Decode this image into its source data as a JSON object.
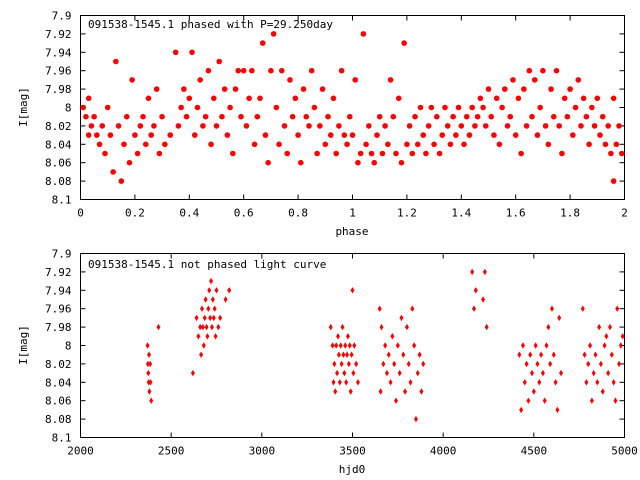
{
  "chart_data": [
    {
      "type": "scatter",
      "title": "091538-1545.1 phased with P=29.250day",
      "xlabel": "phase",
      "ylabel": "I[mag]",
      "xlim": [
        0,
        2
      ],
      "ylim": [
        8.1,
        7.9
      ],
      "y_inverted": true,
      "grid": false,
      "marker": "filled-circle",
      "color": "#ff0000",
      "xticks": [
        "0",
        "0.2",
        "0.4",
        "0.6",
        "0.8",
        "1",
        "1.2",
        "1.4",
        "1.6",
        "1.8",
        "2"
      ],
      "yticks": [
        "7.9",
        "7.92",
        "7.94",
        "7.96",
        "7.98",
        "8",
        "8.02",
        "8.04",
        "8.06",
        "8.08",
        "8.1"
      ],
      "points": [
        [
          0.01,
          8.0
        ],
        [
          0.02,
          8.01
        ],
        [
          0.03,
          7.99
        ],
        [
          0.03,
          8.03
        ],
        [
          0.04,
          8.02
        ],
        [
          0.05,
          8.01
        ],
        [
          0.06,
          8.03
        ],
        [
          0.07,
          8.04
        ],
        [
          0.08,
          8.02
        ],
        [
          0.09,
          8.05
        ],
        [
          0.1,
          8.0
        ],
        [
          0.11,
          8.03
        ],
        [
          0.12,
          8.07
        ],
        [
          0.13,
          7.95
        ],
        [
          0.14,
          8.02
        ],
        [
          0.15,
          8.08
        ],
        [
          0.16,
          8.04
        ],
        [
          0.17,
          8.01
        ],
        [
          0.18,
          8.06
        ],
        [
          0.19,
          7.97
        ],
        [
          0.2,
          8.03
        ],
        [
          0.21,
          8.05
        ],
        [
          0.22,
          8.02
        ],
        [
          0.23,
          8.01
        ],
        [
          0.24,
          8.04
        ],
        [
          0.25,
          7.99
        ],
        [
          0.26,
          8.03
        ],
        [
          0.27,
          8.02
        ],
        [
          0.28,
          7.98
        ],
        [
          0.29,
          8.05
        ],
        [
          0.3,
          8.01
        ],
        [
          0.31,
          8.04
        ],
        [
          0.33,
          8.03
        ],
        [
          0.35,
          7.94
        ],
        [
          0.36,
          8.02
        ],
        [
          0.37,
          8.0
        ],
        [
          0.38,
          7.98
        ],
        [
          0.39,
          8.01
        ],
        [
          0.4,
          7.99
        ],
        [
          0.41,
          7.94
        ],
        [
          0.42,
          8.03
        ],
        [
          0.43,
          8.0
        ],
        [
          0.44,
          7.97
        ],
        [
          0.45,
          8.02
        ],
        [
          0.46,
          8.01
        ],
        [
          0.47,
          7.96
        ],
        [
          0.48,
          8.04
        ],
        [
          0.49,
          7.99
        ],
        [
          0.5,
          8.02
        ],
        [
          0.51,
          7.95
        ],
        [
          0.52,
          8.01
        ],
        [
          0.53,
          7.98
        ],
        [
          0.54,
          8.03
        ],
        [
          0.55,
          8.0
        ],
        [
          0.56,
          8.05
        ],
        [
          0.57,
          7.98
        ],
        [
          0.58,
          7.96
        ],
        [
          0.59,
          8.01
        ],
        [
          0.6,
          7.96
        ],
        [
          0.61,
          8.02
        ],
        [
          0.62,
          7.99
        ],
        [
          0.63,
          7.96
        ],
        [
          0.64,
          8.04
        ],
        [
          0.65,
          8.01
        ],
        [
          0.66,
          7.99
        ],
        [
          0.67,
          7.93
        ],
        [
          0.68,
          8.03
        ],
        [
          0.69,
          8.06
        ],
        [
          0.7,
          7.96
        ],
        [
          0.71,
          7.92
        ],
        [
          0.72,
          8.0
        ],
        [
          0.73,
          8.04
        ],
        [
          0.74,
          7.96
        ],
        [
          0.75,
          8.02
        ],
        [
          0.76,
          8.05
        ],
        [
          0.77,
          7.97
        ],
        [
          0.78,
          8.01
        ],
        [
          0.79,
          7.99
        ],
        [
          0.8,
          8.03
        ],
        [
          0.81,
          8.06
        ],
        [
          0.82,
          7.98
        ],
        [
          0.83,
          8.01
        ],
        [
          0.84,
          8.02
        ],
        [
          0.85,
          7.96
        ],
        [
          0.86,
          8.0
        ],
        [
          0.87,
          8.05
        ],
        [
          0.88,
          8.02
        ],
        [
          0.89,
          7.98
        ],
        [
          0.9,
          8.04
        ],
        [
          0.91,
          8.01
        ],
        [
          0.92,
          8.03
        ],
        [
          0.93,
          7.99
        ],
        [
          0.94,
          8.05
        ],
        [
          0.95,
          8.02
        ],
        [
          0.96,
          7.96
        ],
        [
          0.97,
          8.03
        ],
        [
          0.98,
          8.04
        ],
        [
          0.99,
          8.01
        ],
        [
          1.0,
          8.03
        ],
        [
          1.01,
          7.97
        ],
        [
          1.02,
          8.06
        ],
        [
          1.03,
          8.05
        ],
        [
          1.04,
          7.92
        ],
        [
          1.05,
          8.04
        ],
        [
          1.06,
          8.02
        ],
        [
          1.07,
          8.05
        ],
        [
          1.08,
          8.06
        ],
        [
          1.09,
          8.03
        ],
        [
          1.1,
          8.01
        ],
        [
          1.11,
          8.05
        ],
        [
          1.12,
          8.02
        ],
        [
          1.13,
          8.04
        ],
        [
          1.14,
          7.97
        ],
        [
          1.15,
          8.01
        ],
        [
          1.16,
          8.05
        ],
        [
          1.17,
          7.99
        ],
        [
          1.18,
          8.06
        ],
        [
          1.19,
          7.93
        ],
        [
          1.2,
          8.04
        ],
        [
          1.21,
          8.02
        ],
        [
          1.22,
          8.05
        ],
        [
          1.23,
          8.01
        ],
        [
          1.24,
          8.04
        ],
        [
          1.25,
          8.0
        ],
        [
          1.26,
          8.03
        ],
        [
          1.27,
          8.05
        ],
        [
          1.28,
          8.02
        ],
        [
          1.29,
          8.0
        ],
        [
          1.3,
          8.04
        ],
        [
          1.31,
          8.01
        ],
        [
          1.32,
          8.05
        ],
        [
          1.33,
          8.03
        ],
        [
          1.34,
          8.0
        ],
        [
          1.35,
          8.02
        ],
        [
          1.36,
          8.04
        ],
        [
          1.37,
          8.01
        ],
        [
          1.38,
          8.03
        ],
        [
          1.39,
          8.0
        ],
        [
          1.4,
          8.02
        ],
        [
          1.41,
          8.04
        ],
        [
          1.42,
          8.01
        ],
        [
          1.43,
          8.03
        ],
        [
          1.44,
          8.0
        ],
        [
          1.45,
          8.02
        ],
        [
          1.46,
          8.01
        ],
        [
          1.47,
          7.99
        ],
        [
          1.48,
          8.0
        ],
        [
          1.49,
          8.02
        ],
        [
          1.5,
          7.98
        ],
        [
          1.51,
          8.01
        ],
        [
          1.52,
          8.03
        ],
        [
          1.53,
          7.99
        ],
        [
          1.54,
          8.04
        ],
        [
          1.55,
          8.0
        ],
        [
          1.56,
          7.98
        ],
        [
          1.57,
          8.02
        ],
        [
          1.58,
          8.01
        ],
        [
          1.59,
          7.97
        ],
        [
          1.6,
          8.03
        ],
        [
          1.61,
          7.99
        ],
        [
          1.62,
          8.05
        ],
        [
          1.63,
          7.98
        ],
        [
          1.64,
          8.02
        ],
        [
          1.65,
          7.96
        ],
        [
          1.66,
          8.01
        ],
        [
          1.67,
          7.97
        ],
        [
          1.68,
          8.03
        ],
        [
          1.69,
          8.0
        ],
        [
          1.7,
          7.96
        ],
        [
          1.71,
          8.02
        ],
        [
          1.72,
          8.04
        ],
        [
          1.73,
          7.98
        ],
        [
          1.74,
          8.01
        ],
        [
          1.75,
          7.96
        ],
        [
          1.76,
          8.02
        ],
        [
          1.77,
          8.05
        ],
        [
          1.78,
          7.99
        ],
        [
          1.79,
          8.01
        ],
        [
          1.8,
          7.98
        ],
        [
          1.81,
          8.03
        ],
        [
          1.82,
          8.0
        ],
        [
          1.83,
          7.97
        ],
        [
          1.84,
          8.02
        ],
        [
          1.85,
          7.99
        ],
        [
          1.86,
          8.01
        ],
        [
          1.87,
          8.04
        ],
        [
          1.88,
          8.0
        ],
        [
          1.89,
          8.02
        ],
        [
          1.9,
          7.99
        ],
        [
          1.91,
          8.03
        ],
        [
          1.92,
          8.01
        ],
        [
          1.93,
          8.04
        ],
        [
          1.94,
          8.02
        ],
        [
          1.95,
          8.05
        ],
        [
          1.96,
          7.99
        ],
        [
          1.96,
          8.08
        ],
        [
          1.97,
          8.04
        ],
        [
          1.98,
          8.02
        ],
        [
          1.99,
          8.05
        ]
      ]
    },
    {
      "type": "scatter",
      "title": "091538-1545.1 not phased light curve",
      "xlabel": "hjd0",
      "ylabel": "I[mag]",
      "xlim": [
        2000,
        5000
      ],
      "ylim": [
        8.1,
        7.9
      ],
      "y_inverted": true,
      "grid": false,
      "marker": "filled-diamond",
      "color": "#ff0000",
      "xticks": [
        "2000",
        "2500",
        "3000",
        "3500",
        "4000",
        "4500",
        "5000"
      ],
      "yticks": [
        "7.9",
        "7.92",
        "7.94",
        "7.96",
        "7.98",
        "8",
        "8.02",
        "8.04",
        "8.06",
        "8.08",
        "8.1"
      ],
      "points": [
        [
          2370,
          8.0
        ],
        [
          2372,
          8.02
        ],
        [
          2374,
          8.03
        ],
        [
          2376,
          8.04
        ],
        [
          2378,
          8.01
        ],
        [
          2380,
          8.05
        ],
        [
          2384,
          8.02
        ],
        [
          2386,
          8.04
        ],
        [
          2390,
          8.06
        ],
        [
          2430,
          7.98
        ],
        [
          2620,
          8.03
        ],
        [
          2640,
          7.97
        ],
        [
          2650,
          7.99
        ],
        [
          2660,
          7.98
        ],
        [
          2665,
          8.01
        ],
        [
          2670,
          7.96
        ],
        [
          2675,
          7.98
        ],
        [
          2680,
          8.0
        ],
        [
          2685,
          7.97
        ],
        [
          2690,
          7.95
        ],
        [
          2695,
          7.98
        ],
        [
          2700,
          7.99
        ],
        [
          2705,
          7.96
        ],
        [
          2710,
          7.94
        ],
        [
          2715,
          7.97
        ],
        [
          2720,
          7.93
        ],
        [
          2725,
          7.98
        ],
        [
          2730,
          7.95
        ],
        [
          2735,
          7.97
        ],
        [
          2740,
          7.96
        ],
        [
          2745,
          7.99
        ],
        [
          2750,
          7.94
        ],
        [
          2760,
          7.98
        ],
        [
          2770,
          7.97
        ],
        [
          2800,
          7.95
        ],
        [
          2820,
          7.94
        ],
        [
          3380,
          7.98
        ],
        [
          3390,
          8.0
        ],
        [
          3395,
          8.04
        ],
        [
          3400,
          8.02
        ],
        [
          3405,
          8.05
        ],
        [
          3410,
          8.0
        ],
        [
          3415,
          8.03
        ],
        [
          3420,
          7.99
        ],
        [
          3425,
          8.01
        ],
        [
          3430,
          8.04
        ],
        [
          3435,
          8.0
        ],
        [
          3440,
          8.02
        ],
        [
          3445,
          7.98
        ],
        [
          3450,
          8.01
        ],
        [
          3455,
          8.03
        ],
        [
          3460,
          8.0
        ],
        [
          3465,
          8.04
        ],
        [
          3470,
          8.01
        ],
        [
          3475,
          7.99
        ],
        [
          3480,
          8.02
        ],
        [
          3485,
          8.0
        ],
        [
          3490,
          8.05
        ],
        [
          3495,
          8.01
        ],
        [
          3500,
          7.94
        ],
        [
          3505,
          8.03
        ],
        [
          3510,
          8.0
        ],
        [
          3520,
          8.02
        ],
        [
          3530,
          8.04
        ],
        [
          3650,
          7.96
        ],
        [
          3655,
          8.05
        ],
        [
          3660,
          7.98
        ],
        [
          3670,
          8.02
        ],
        [
          3680,
          8.0
        ],
        [
          3690,
          8.03
        ],
        [
          3700,
          8.01
        ],
        [
          3710,
          8.04
        ],
        [
          3720,
          7.99
        ],
        [
          3730,
          8.02
        ],
        [
          3740,
          8.06
        ],
        [
          3750,
          8.0
        ],
        [
          3760,
          8.03
        ],
        [
          3770,
          7.97
        ],
        [
          3780,
          8.01
        ],
        [
          3790,
          8.05
        ],
        [
          3800,
          7.98
        ],
        [
          3810,
          8.02
        ],
        [
          3820,
          8.04
        ],
        [
          3830,
          7.96
        ],
        [
          3840,
          8.0
        ],
        [
          3850,
          8.08
        ],
        [
          3860,
          8.03
        ],
        [
          3870,
          8.01
        ],
        [
          3880,
          8.05
        ],
        [
          3890,
          8.02
        ],
        [
          4160,
          7.92
        ],
        [
          4170,
          7.96
        ],
        [
          4180,
          7.94
        ],
        [
          4220,
          7.95
        ],
        [
          4230,
          7.92
        ],
        [
          4240,
          7.98
        ],
        [
          4420,
          8.01
        ],
        [
          4430,
          8.07
        ],
        [
          4440,
          8.0
        ],
        [
          4450,
          8.04
        ],
        [
          4460,
          8.02
        ],
        [
          4470,
          8.06
        ],
        [
          4480,
          8.01
        ],
        [
          4490,
          8.03
        ],
        [
          4500,
          8.05
        ],
        [
          4510,
          8.0
        ],
        [
          4520,
          8.02
        ],
        [
          4530,
          8.04
        ],
        [
          4540,
          8.01
        ],
        [
          4550,
          8.03
        ],
        [
          4560,
          8.06
        ],
        [
          4570,
          8.0
        ],
        [
          4580,
          7.98
        ],
        [
          4590,
          8.02
        ],
        [
          4600,
          7.96
        ],
        [
          4610,
          8.01
        ],
        [
          4620,
          8.04
        ],
        [
          4630,
          8.07
        ],
        [
          4640,
          7.97
        ],
        [
          4650,
          8.03
        ],
        [
          4770,
          7.96
        ],
        [
          4780,
          8.01
        ],
        [
          4790,
          8.04
        ],
        [
          4800,
          8.02
        ],
        [
          4810,
          8.0
        ],
        [
          4820,
          8.06
        ],
        [
          4830,
          8.03
        ],
        [
          4840,
          8.01
        ],
        [
          4850,
          8.04
        ],
        [
          4860,
          7.98
        ],
        [
          4870,
          8.02
        ],
        [
          4880,
          8.05
        ],
        [
          4890,
          8.0
        ],
        [
          4900,
          7.99
        ],
        [
          4910,
          8.03
        ],
        [
          4920,
          7.98
        ],
        [
          4930,
          8.01
        ],
        [
          4940,
          8.04
        ],
        [
          4950,
          8.06
        ],
        [
          4960,
          7.96
        ],
        [
          4970,
          8.02
        ],
        [
          4980,
          8.0
        ],
        [
          4990,
          7.99
        ]
      ]
    }
  ]
}
